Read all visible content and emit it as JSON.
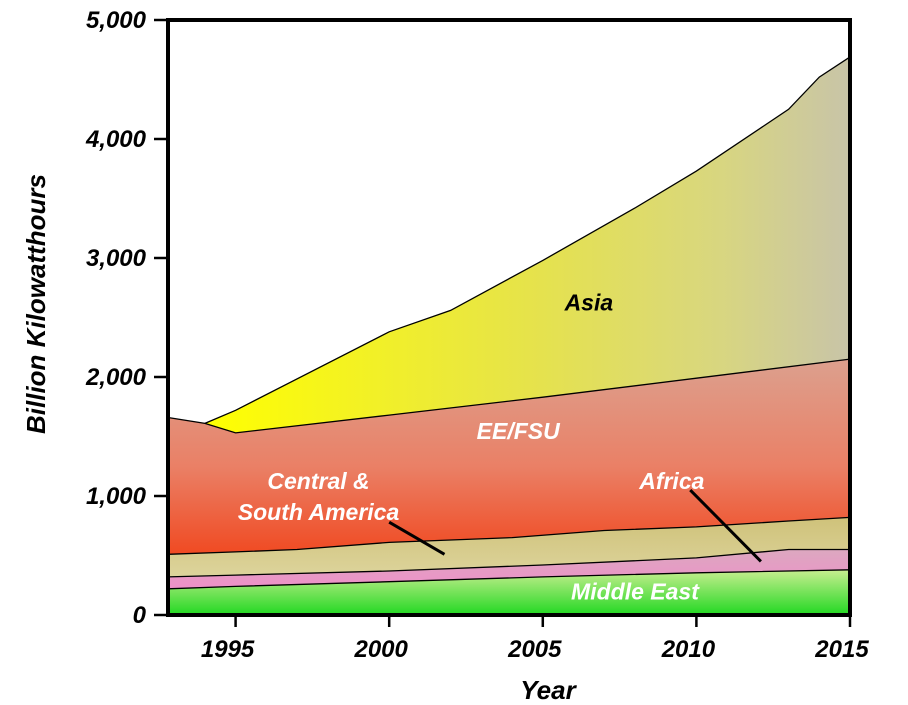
{
  "chart_data": {
    "type": "area",
    "title": "",
    "xlabel": "Year",
    "ylabel": "Billion Kilowatthours",
    "xlim": [
      1992.8,
      2015
    ],
    "ylim": [
      0,
      5000
    ],
    "x_ticks": [
      1995,
      2000,
      2005,
      2010,
      2015
    ],
    "x_tick_labels": [
      "1995",
      "2000",
      "2005",
      "2010",
      "2015"
    ],
    "y_ticks": [
      0,
      1000,
      2000,
      3000,
      4000,
      5000
    ],
    "y_tick_labels": [
      "0",
      "1,000",
      "2,000",
      "3,000",
      "4,000",
      "5,000"
    ],
    "stacking": "cumulative boundaries (bottom to top)",
    "series": [
      {
        "name": "Middle East",
        "color": "#33dd33",
        "boundary": [
          [
            1992.8,
            220
          ],
          [
            1995,
            240
          ],
          [
            2000,
            280
          ],
          [
            2005,
            320
          ],
          [
            2010,
            355
          ],
          [
            2015,
            380
          ]
        ]
      },
      {
        "name": "",
        "color": "#e8a0c8",
        "boundary": [
          [
            1992.8,
            320
          ],
          [
            1995,
            335
          ],
          [
            2000,
            370
          ],
          [
            2005,
            420
          ],
          [
            2010,
            480
          ],
          [
            2013,
            550
          ],
          [
            2015,
            550
          ]
        ]
      },
      {
        "name": "Africa",
        "color": "#d2c884",
        "boundary": [
          [
            1992.8,
            510
          ],
          [
            1995,
            530
          ],
          [
            1997,
            550
          ],
          [
            2000,
            610
          ],
          [
            2004,
            650
          ],
          [
            2007,
            710
          ],
          [
            2010,
            740
          ],
          [
            2013,
            790
          ],
          [
            2015,
            820
          ]
        ]
      },
      {
        "name": "Central & South America",
        "color": "#ee5530",
        "boundary": [
          [
            1992.8,
            1660
          ],
          [
            1994,
            1610
          ],
          [
            1995,
            1530
          ],
          [
            2000,
            1680
          ],
          [
            2005,
            1830
          ],
          [
            2010,
            1990
          ],
          [
            2015,
            2150
          ]
        ]
      },
      {
        "name": "EE/FSU",
        "color": "#e8a090",
        "boundary": [
          [
            1992.8,
            1660
          ],
          [
            1994,
            1610
          ],
          [
            1995,
            1530
          ],
          [
            2000,
            1680
          ],
          [
            2005,
            1830
          ],
          [
            2010,
            1990
          ],
          [
            2015,
            2150
          ]
        ]
      },
      {
        "name": "Asia",
        "color": "#f0f000",
        "boundary": [
          [
            1994,
            1610
          ],
          [
            1995,
            1720
          ],
          [
            2000,
            2380
          ],
          [
            2002,
            2560
          ],
          [
            2005,
            2980
          ],
          [
            2008,
            3420
          ],
          [
            2010,
            3730
          ],
          [
            2013,
            4250
          ],
          [
            2014,
            4520
          ],
          [
            2015,
            4690
          ]
        ]
      }
    ],
    "annotations": [
      {
        "text": "Asia",
        "x": 2006.5,
        "y": 2560,
        "color": "#000000"
      },
      {
        "text": "EE/FSU",
        "x": 2004.2,
        "y": 1480,
        "color": "#ffffff"
      },
      {
        "text": "Central &",
        "x": 1997.7,
        "y": 1060,
        "color": "#ffffff"
      },
      {
        "text": "South America",
        "x": 1997.7,
        "y": 800,
        "color": "#ffffff"
      },
      {
        "text": "Africa",
        "x": 2009.2,
        "y": 1060,
        "color": "#ffffff"
      },
      {
        "text": "Middle East",
        "x": 2008,
        "y": 130,
        "color": "#ffffff"
      }
    ],
    "pointer_lines": [
      {
        "from": [
          2000.0,
          780
        ],
        "to": [
          2001.8,
          510
        ]
      },
      {
        "from": [
          2009.8,
          1050
        ],
        "to": [
          2012.1,
          450
        ]
      }
    ],
    "grid": false,
    "legend": "none"
  }
}
